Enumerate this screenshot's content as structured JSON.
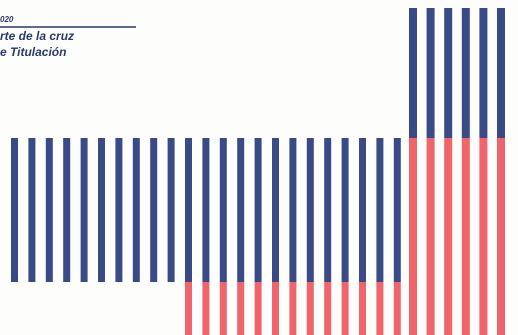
{
  "header": {
    "small_text": "020",
    "line1": "rte de la cruz",
    "line2": "e Titulación"
  }
}
